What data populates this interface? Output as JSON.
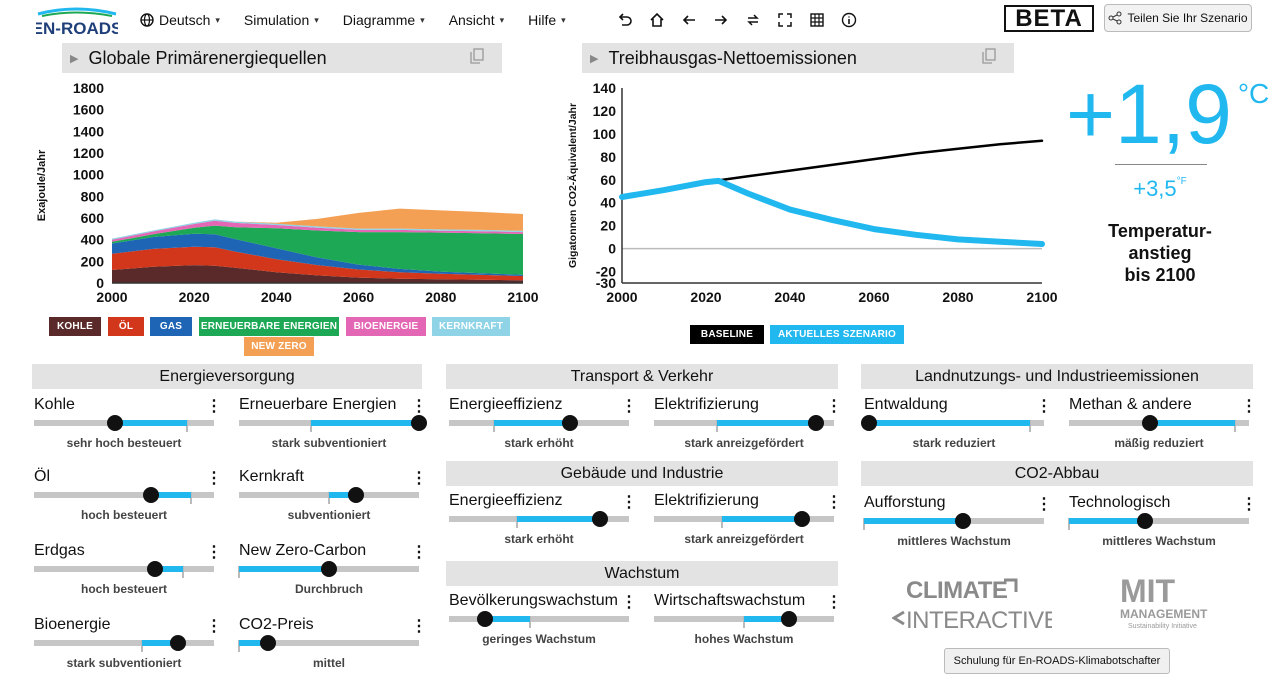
{
  "app": {
    "logo_text": "EN-ROADS",
    "beta": "BETA",
    "share_label": "Teilen Sie Ihr Szenario"
  },
  "menu": [
    {
      "label": "Deutsch",
      "icon": "globe-icon"
    },
    {
      "label": "Simulation"
    },
    {
      "label": "Diagramme"
    },
    {
      "label": "Ansicht"
    },
    {
      "label": "Hilfe"
    }
  ],
  "toolbar_icons": [
    "undo-icon",
    "home-icon",
    "back-icon",
    "forward-icon",
    "compare-icon",
    "fullscreen-icon",
    "table-icon",
    "info-icon"
  ],
  "charts": {
    "left_title": "Globale Primärenergiequellen",
    "right_title": "Treibhausgas-Nettoemissionen"
  },
  "chart_data": [
    {
      "type": "area",
      "title": "Globale Primärenergiequellen",
      "ylabel": "Exajoule/Jahr",
      "ylim": [
        0,
        1800
      ],
      "yticks": [
        0,
        200,
        400,
        600,
        800,
        1000,
        1200,
        1400,
        1600,
        1800
      ],
      "xticks": [
        2000,
        2020,
        2040,
        2060,
        2080,
        2100
      ],
      "x": [
        2000,
        2010,
        2020,
        2025,
        2030,
        2040,
        2050,
        2060,
        2070,
        2080,
        2090,
        2100
      ],
      "series": [
        {
          "name": "KOHLE",
          "color": "#5a2a2a",
          "values": [
            120,
            150,
            165,
            160,
            140,
            100,
            70,
            50,
            40,
            35,
            30,
            25
          ]
        },
        {
          "name": "ÖL",
          "color": "#d2371b",
          "values": [
            150,
            165,
            170,
            170,
            150,
            120,
            95,
            75,
            60,
            50,
            45,
            40
          ]
        },
        {
          "name": "GAS",
          "color": "#1e66b5",
          "values": [
            95,
            110,
            120,
            120,
            115,
            100,
            70,
            45,
            30,
            20,
            15,
            12
          ]
        },
        {
          "name": "ERNEUERBARE ENERGIEN",
          "color": "#1ca854",
          "values": [
            15,
            25,
            55,
            80,
            110,
            185,
            250,
            300,
            340,
            360,
            370,
            375
          ]
        },
        {
          "name": "BIOENERGIE",
          "color": "#e467b5",
          "values": [
            20,
            25,
            35,
            45,
            40,
            30,
            25,
            20,
            20,
            18,
            18,
            18
          ]
        },
        {
          "name": "KERNKRAFT",
          "color": "#8ed3e6",
          "values": [
            10,
            10,
            12,
            12,
            12,
            12,
            12,
            12,
            12,
            12,
            12,
            12
          ]
        },
        {
          "name": "NEW ZERO",
          "color": "#f4a054",
          "values": [
            0,
            0,
            0,
            0,
            0,
            10,
            70,
            145,
            185,
            175,
            165,
            155
          ]
        }
      ]
    },
    {
      "type": "line",
      "title": "Treibhausgas-Nettoemissionen",
      "ylabel": "Gigatonnen CO2-Äquivalent/Jahr",
      "ylim": [
        -30,
        140
      ],
      "yticks": [
        -30,
        -20,
        0,
        20,
        40,
        60,
        80,
        100,
        120,
        140
      ],
      "xticks": [
        2000,
        2020,
        2040,
        2060,
        2080,
        2100
      ],
      "series": [
        {
          "name": "BASELINE",
          "color": "#000000",
          "x": [
            2000,
            2010,
            2020,
            2030,
            2040,
            2050,
            2060,
            2070,
            2080,
            2090,
            2100
          ],
          "values": [
            45,
            51,
            58,
            63,
            68,
            73,
            78,
            83,
            87,
            91,
            94
          ]
        },
        {
          "name": "AKTUELLES SZENARIO",
          "color": "#21b8ef",
          "x": [
            2000,
            2010,
            2020,
            2023,
            2030,
            2040,
            2050,
            2060,
            2070,
            2080,
            2090,
            2100
          ],
          "values": [
            45,
            51,
            58,
            59,
            48,
            34,
            25,
            17,
            12,
            8,
            6,
            4
          ]
        }
      ]
    }
  ],
  "temperature": {
    "celsius": "+1,9",
    "c_unit": "°C",
    "fahrenheit": "+3,5",
    "f_unit": "°F",
    "label_lines": [
      "Temperatur-",
      "anstieg",
      "bis 2100"
    ]
  },
  "sections": {
    "energy": "Energieversorgung",
    "transport": "Transport & Verkehr",
    "buildings": "Gebäude und Industrie",
    "growth": "Wachstum",
    "land": "Landnutzungs- und Industrieemissionen",
    "co2": "CO2-Abbau"
  },
  "sliders": [
    {
      "name": "Kohle",
      "status": "sehr hoch besteuert",
      "value": 0.45,
      "fill_from": 0.45,
      "fill_to": 0.85,
      "tick": 0.85
    },
    {
      "name": "Erneuerbare Energien",
      "status": "stark subventioniert",
      "value": 1.0,
      "fill_from": 0.4,
      "fill_to": 1.0,
      "tick": 0.4
    },
    {
      "name": "Öl",
      "status": "hoch besteuert",
      "value": 0.65,
      "fill_from": 0.65,
      "fill_to": 0.87,
      "tick": 0.87
    },
    {
      "name": "Kernkraft",
      "status": "subventioniert",
      "value": 0.65,
      "fill_from": 0.5,
      "fill_to": 0.65,
      "tick": 0.5
    },
    {
      "name": "Erdgas",
      "status": "hoch besteuert",
      "value": 0.67,
      "fill_from": 0.67,
      "fill_to": 0.83,
      "tick": 0.83
    },
    {
      "name": "New Zero-Carbon",
      "status": "Durchbruch",
      "value": 0.5,
      "fill_from": 0.0,
      "fill_to": 0.5,
      "tick": 0.0
    },
    {
      "name": "Bioenergie",
      "status": "stark subventioniert",
      "value": 0.8,
      "fill_from": 0.6,
      "fill_to": 0.8,
      "tick": 0.6
    },
    {
      "name": "CO2-Preis",
      "status": "mittel",
      "value": 0.16,
      "fill_from": 0.0,
      "fill_to": 0.16,
      "tick": 0.0
    },
    {
      "name": "Energieeffizienz",
      "status": "stark erhöht",
      "value": 0.67,
      "fill_from": 0.25,
      "fill_to": 0.67,
      "tick": 0.25
    },
    {
      "name": "Elektrifizierung",
      "status": "stark anreizgefördert",
      "value": 0.9,
      "fill_from": 0.35,
      "fill_to": 0.9,
      "tick": 0.35
    },
    {
      "name": "Energieeffizienz",
      "status": "stark erhöht",
      "value": 0.84,
      "fill_from": 0.38,
      "fill_to": 0.84,
      "tick": 0.38
    },
    {
      "name": "Elektrifizierung",
      "status": "stark anreizgefördert",
      "value": 0.82,
      "fill_from": 0.38,
      "fill_to": 0.82,
      "tick": 0.38
    },
    {
      "name": "Bevölkerungswachstum",
      "status": "geringes Wachstum",
      "value": 0.2,
      "fill_from": 0.2,
      "fill_to": 0.45,
      "tick": 0.45
    },
    {
      "name": "Wirtschaftswachstum",
      "status": "hohes Wachstum",
      "value": 0.75,
      "fill_from": 0.5,
      "fill_to": 0.75,
      "tick": 0.5
    },
    {
      "name": "Entwaldung",
      "status": "stark reduziert",
      "value": 0.03,
      "fill_from": 0.03,
      "fill_to": 0.92,
      "tick": 0.92
    },
    {
      "name": "Methan & andere",
      "status": "mäßig reduziert",
      "value": 0.45,
      "fill_from": 0.45,
      "fill_to": 0.92,
      "tick": 0.92
    },
    {
      "name": "Aufforstung",
      "status": "mittleres Wachstum",
      "value": 0.55,
      "fill_from": 0.0,
      "fill_to": 0.55,
      "tick": 0.0
    },
    {
      "name": "Technologisch",
      "status": "mittleres Wachstum",
      "value": 0.42,
      "fill_from": 0.0,
      "fill_to": 0.42,
      "tick": 0.0
    }
  ],
  "footer": {
    "ci_logo": "CLIMATE INTERACTIVE",
    "mit_logo": "MIT MANAGEMENT",
    "mit_sub": "Sustainability Initiative",
    "training_label": "Schulung für En-ROADS-Klimabotschafter"
  }
}
